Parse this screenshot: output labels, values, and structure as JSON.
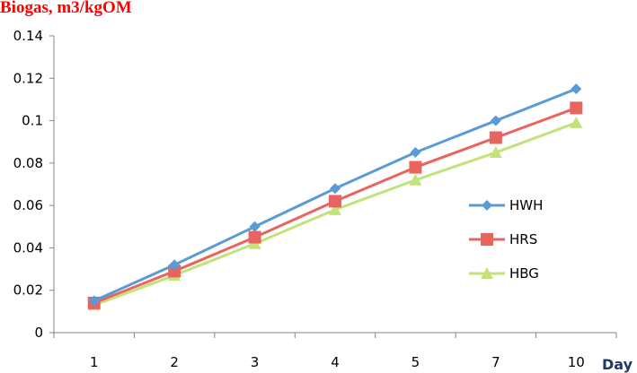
{
  "chart_data": {
    "type": "line",
    "title": "Biogas, m3/kgOM",
    "xlabel": "Day",
    "ylabel": "",
    "categories": [
      "1",
      "2",
      "3",
      "4",
      "5",
      "7",
      "10"
    ],
    "ylim": [
      0,
      0.14
    ],
    "yticks": [
      "0",
      "0.02",
      "0.04",
      "0.06",
      "0.08",
      "0.1",
      "0.12",
      "0.14"
    ],
    "grid": false,
    "legend_position": "right",
    "series": [
      {
        "name": "HWH",
        "color": "#5b9bd5",
        "marker": "diamond",
        "values": [
          0.015,
          0.032,
          0.05,
          0.068,
          0.085,
          0.1,
          0.115
        ]
      },
      {
        "name": "HRS",
        "color": "#e8645e",
        "marker": "square",
        "values": [
          0.014,
          0.029,
          0.045,
          0.062,
          0.078,
          0.092,
          0.106
        ]
      },
      {
        "name": "HBG",
        "color": "#c3e27a",
        "marker": "triangle",
        "values": [
          0.013,
          0.027,
          0.042,
          0.058,
          0.072,
          0.085,
          0.099
        ]
      }
    ]
  }
}
